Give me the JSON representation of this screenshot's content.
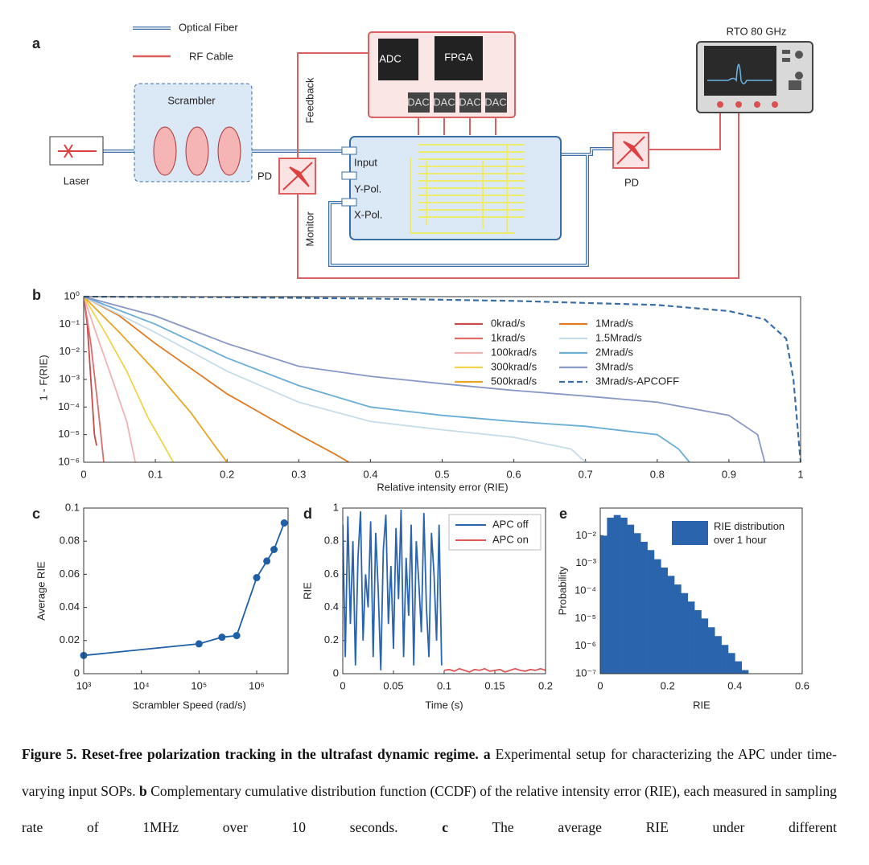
{
  "diagram": {
    "panel_label": "a",
    "legend_fiber": "Optical Fiber",
    "legend_rf": "RF Cable",
    "scrambler": "Scrambler",
    "laser": "Laser",
    "pd_left": "PD",
    "pd_right": "PD",
    "adc": "ADC",
    "fpga": "FPGA",
    "dac": [
      "DAC",
      "DAC",
      "DAC",
      "DAC"
    ],
    "ports": [
      "Input",
      "Y-Pol.",
      "X-Pol."
    ],
    "feedback": "Feedback",
    "monitor": "Monitor",
    "scope": "RTO 80 GHz"
  },
  "chart_data": [
    {
      "type": "line",
      "panel_label": "b",
      "xlabel": "Relative intensity error (RIE)",
      "ylabel": "1 - F(RIE)",
      "xlim": [
        0,
        1
      ],
      "xticks": [
        0,
        0.1,
        0.2,
        0.3,
        0.4,
        0.5,
        0.6,
        0.7,
        0.8,
        0.9,
        1
      ],
      "ylim": [
        1e-06,
        1
      ],
      "yscale": "log",
      "yticks": [
        {
          "value": 1e-06,
          "label": "10⁻⁶"
        },
        {
          "value": 1e-05,
          "label": "10⁻⁵"
        },
        {
          "value": 0.0001,
          "label": "10⁻⁴"
        },
        {
          "value": 0.001,
          "label": "10⁻³"
        },
        {
          "value": 0.01,
          "label": "10⁻²"
        },
        {
          "value": 0.1,
          "label": "10⁻¹"
        },
        {
          "value": 1,
          "label": "10⁰"
        }
      ],
      "series": [
        {
          "name": "0krad/s",
          "color": "#c9484a",
          "x": [
            0,
            0.005,
            0.01,
            0.015,
            0.018
          ],
          "values": [
            1,
            0.1,
            0.001,
            1e-05,
            4e-06
          ]
        },
        {
          "name": "1krad/s",
          "color": "#e06b6b",
          "x": [
            0,
            0.01,
            0.02,
            0.028
          ],
          "values": [
            1,
            0.02,
            0.0001,
            1e-06
          ]
        },
        {
          "name": "100krad/s",
          "color": "#f2b2b2",
          "x": [
            0,
            0.02,
            0.04,
            0.06,
            0.072
          ],
          "values": [
            1,
            0.03,
            0.001,
            3e-05,
            1e-06
          ]
        },
        {
          "name": "300krad/s",
          "color": "#f2d34c",
          "x": [
            0,
            0.03,
            0.06,
            0.09,
            0.11,
            0.125
          ],
          "values": [
            1,
            0.05,
            0.002,
            4e-05,
            5e-06,
            1e-06
          ]
        },
        {
          "name": "500krad/s",
          "color": "#e9a623",
          "x": [
            0,
            0.05,
            0.1,
            0.15,
            0.18,
            0.2
          ],
          "values": [
            1,
            0.05,
            0.002,
            6e-05,
            5e-06,
            1e-06
          ]
        },
        {
          "name": "1Mrad/s",
          "color": "#e07b22",
          "x": [
            0,
            0.05,
            0.1,
            0.2,
            0.3,
            0.35,
            0.37
          ],
          "values": [
            1,
            0.2,
            0.02,
            0.0003,
            1e-05,
            2e-06,
            1e-06
          ]
        },
        {
          "name": "1.5Mrad/s",
          "color": "#c6dde9",
          "x": [
            0,
            0.1,
            0.2,
            0.3,
            0.4,
            0.5,
            0.6,
            0.68,
            0.7
          ],
          "values": [
            1,
            0.05,
            0.002,
            0.00015,
            3e-05,
            1.5e-05,
            8e-06,
            3e-06,
            1e-06
          ]
        },
        {
          "name": "2Mrad/s",
          "color": "#6aaed6",
          "x": [
            0,
            0.1,
            0.2,
            0.3,
            0.4,
            0.5,
            0.6,
            0.7,
            0.8,
            0.83,
            0.845
          ],
          "values": [
            1,
            0.1,
            0.006,
            0.0006,
            0.0001,
            5e-05,
            3e-05,
            2e-05,
            1e-05,
            3e-06,
            1e-06
          ]
        },
        {
          "name": "3Mrad/s",
          "color": "#8797c6",
          "x": [
            0,
            0.1,
            0.2,
            0.3,
            0.4,
            0.5,
            0.6,
            0.7,
            0.8,
            0.9,
            0.94,
            0.95
          ],
          "values": [
            1,
            0.2,
            0.02,
            0.003,
            0.0013,
            0.0007,
            0.0004,
            0.00025,
            0.00015,
            5e-05,
            1e-05,
            1e-06
          ]
        },
        {
          "name": "3Mrad/s-APCOFF",
          "color": "#3a6ea5",
          "dashed": true,
          "x": [
            0,
            0.2,
            0.4,
            0.6,
            0.8,
            0.9,
            0.95,
            0.98,
            0.99,
            1
          ],
          "values": [
            1,
            0.95,
            0.85,
            0.7,
            0.5,
            0.3,
            0.15,
            0.03,
            0.001,
            1e-06
          ]
        }
      ]
    },
    {
      "type": "line",
      "panel_label": "c",
      "xlabel": "Scrambler Speed (rad/s)",
      "ylabel": "Average RIE",
      "xscale": "log",
      "xlim": [
        1000,
        3500000
      ],
      "xticks": [
        {
          "value": 1000,
          "label": "10³"
        },
        {
          "value": 10000,
          "label": "10⁴"
        },
        {
          "value": 100000,
          "label": "10⁵"
        },
        {
          "value": 1000000,
          "label": "10⁶"
        }
      ],
      "ylim": [
        0,
        0.1
      ],
      "yticks": [
        0,
        0.02,
        0.04,
        0.06,
        0.08,
        0.1
      ],
      "markers": true,
      "series": [
        {
          "color": "#1f5fa6",
          "x": [
            1000,
            100000,
            250000,
            450000,
            1000000,
            1500000,
            2000000,
            3000000
          ],
          "values": [
            0.011,
            0.018,
            0.022,
            0.023,
            0.058,
            0.068,
            0.075,
            0.091
          ]
        }
      ]
    },
    {
      "type": "line",
      "panel_label": "d",
      "xlabel": "Time (s)",
      "ylabel": "RIE",
      "xlim": [
        0,
        0.2
      ],
      "xticks": [
        0,
        0.05,
        0.1,
        0.15,
        0.2
      ],
      "ylim": [
        0,
        1
      ],
      "yticks": [
        0,
        0.2,
        0.4,
        0.6,
        0.8,
        1
      ],
      "series": [
        {
          "name": "APC off",
          "color": "#2a64ad",
          "x": [
            0,
            0.0025,
            0.005,
            0.0075,
            0.01,
            0.0125,
            0.015,
            0.0175,
            0.02,
            0.0225,
            0.025,
            0.0275,
            0.03,
            0.0325,
            0.035,
            0.0375,
            0.04,
            0.0425,
            0.045,
            0.0475,
            0.05,
            0.0525,
            0.055,
            0.0575,
            0.06,
            0.0625,
            0.065,
            0.0675,
            0.07,
            0.0725,
            0.075,
            0.0775,
            0.08,
            0.0825,
            0.085,
            0.0875,
            0.09,
            0.0925,
            0.095,
            0.0975
          ],
          "values": [
            0.9,
            0.1,
            0.95,
            0.3,
            0.8,
            0.05,
            0.7,
            0.98,
            0.2,
            0.6,
            0.4,
            0.92,
            0.1,
            0.85,
            0.5,
            0.02,
            0.75,
            0.96,
            0.3,
            0.65,
            0.15,
            0.88,
            0.45,
            0.99,
            0.1,
            0.7,
            0.35,
            0.9,
            0.05,
            0.8,
            0.55,
            0.25,
            0.97,
            0.4,
            0.1,
            0.85,
            0.6,
            0.2,
            0.9,
            0.05
          ]
        },
        {
          "name": "APC on",
          "color": "#e05757",
          "x": [
            0.1,
            0.105,
            0.11,
            0.115,
            0.12,
            0.125,
            0.13,
            0.135,
            0.14,
            0.145,
            0.15,
            0.155,
            0.16,
            0.165,
            0.17,
            0.175,
            0.18,
            0.185,
            0.19,
            0.195,
            0.2
          ],
          "values": [
            0.02,
            0.025,
            0.015,
            0.03,
            0.02,
            0.01,
            0.025,
            0.02,
            0.03,
            0.015,
            0.02,
            0.025,
            0.01,
            0.02,
            0.03,
            0.02,
            0.015,
            0.025,
            0.02,
            0.03,
            0.02
          ]
        }
      ]
    },
    {
      "type": "histogram",
      "panel_label": "e",
      "xlabel": "RIE",
      "ylabel": "Probability",
      "xlim": [
        0,
        0.6
      ],
      "xticks": [
        0,
        0.2,
        0.4,
        0.6
      ],
      "ylim": [
        1e-07,
        0.1
      ],
      "yscale": "log",
      "yticks": [
        {
          "value": 1e-07,
          "label": "10⁻⁷"
        },
        {
          "value": 1e-06,
          "label": "10⁻⁶"
        },
        {
          "value": 1e-05,
          "label": "10⁻⁵"
        },
        {
          "value": 0.0001,
          "label": "10⁻⁴"
        },
        {
          "value": 0.001,
          "label": "10⁻³"
        },
        {
          "value": 0.01,
          "label": "10⁻²"
        }
      ],
      "name": "RIE distribution over 1 hour",
      "color": "#2a64ad",
      "bins": [
        0,
        0.02,
        0.04,
        0.06,
        0.08,
        0.1,
        0.12,
        0.14,
        0.16,
        0.18,
        0.2,
        0.22,
        0.24,
        0.26,
        0.28,
        0.3,
        0.32,
        0.34,
        0.36,
        0.38,
        0.4,
        0.42,
        0.44
      ],
      "values": [
        0.01,
        0.045,
        0.056,
        0.045,
        0.025,
        0.0123,
        0.006,
        0.003,
        0.0014,
        0.0007,
        0.00035,
        0.00017,
        8.3e-05,
        4.1e-05,
        2e-05,
        1e-05,
        4.8e-06,
        2.3e-06,
        1.1e-06,
        5.6e-07,
        2.8e-07,
        1.35e-07
      ]
    }
  ],
  "caption": {
    "runs": [
      {
        "text": "Figure 5. Reset-free polarization tracking in the ultrafast dynamic regime. a",
        "bold": true
      },
      {
        "text": " Experimental setup for characterizing the APC under time-varying input SOPs. ",
        "bold": false
      },
      {
        "text": "b",
        "bold": true
      },
      {
        "text": " Complementary cumulative distribution function (CCDF) of the relative intensity error (RIE), each measured in sampling rate of 1MHz over 10 seconds. ",
        "bold": false
      },
      {
        "text": "c",
        "bold": true
      },
      {
        "text": " The average RIE under different",
        "bold": false
      }
    ]
  }
}
